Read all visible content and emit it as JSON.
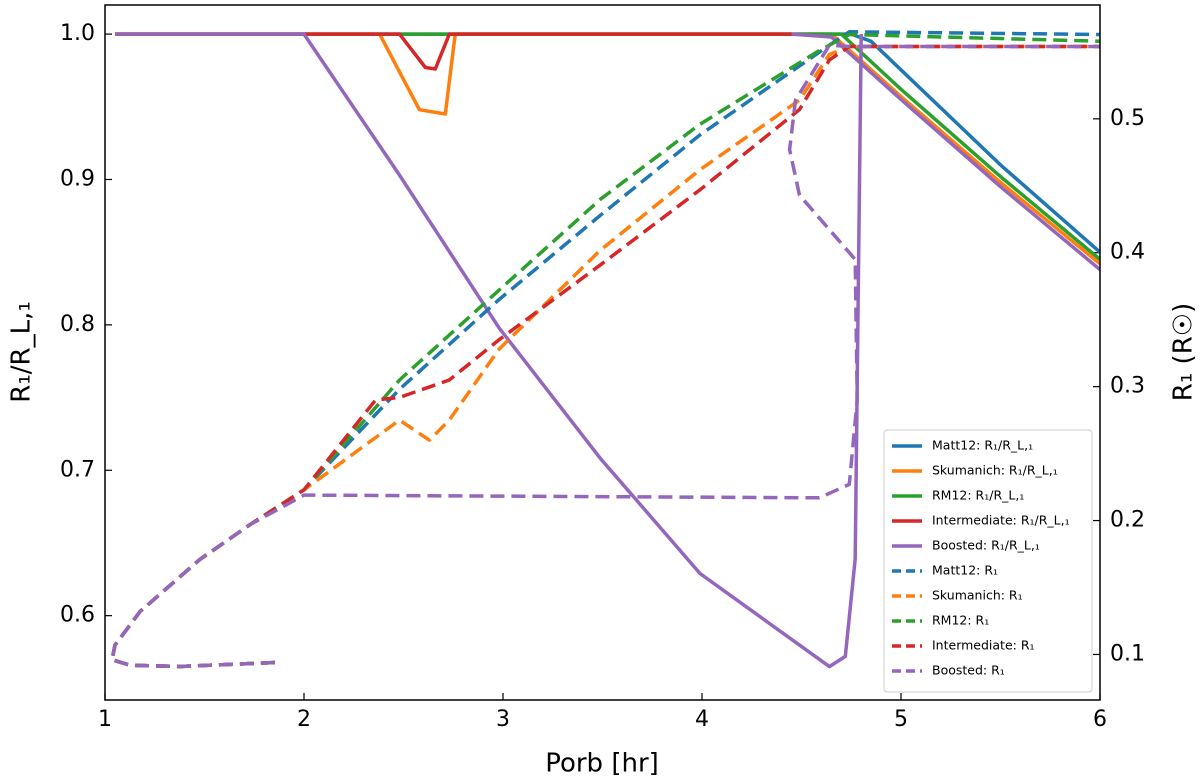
{
  "chart_data": {
    "type": "line",
    "xlabel": "Porb [hr]",
    "ylabel": "R₁/R_L,₁",
    "y2label": "R₁ (R☉)",
    "xlim": [
      1,
      6
    ],
    "xticks": [
      1,
      2,
      3,
      4,
      5,
      6
    ],
    "ylim": [
      0.542,
      1.02
    ],
    "yticks": [
      0.6,
      0.7,
      0.8,
      0.9,
      {
        "value": 1,
        "label": "1.0"
      }
    ],
    "y2lim": [
      0.066,
      0.585
    ],
    "y2ticks": [
      0.1,
      0.2,
      0.3,
      0.4,
      0.5
    ],
    "legend": "lower right",
    "series": [
      {
        "name": "Matt12: R₁/R_L,₁",
        "color": "#1f77b4",
        "dash": false,
        "x": [
          1.05,
          4.75,
          4.85,
          5.5,
          6
        ],
        "values": [
          1.0,
          1.0,
          0.995,
          0.91,
          0.85
        ]
      },
      {
        "name": "Skumanich: R₁/R_L,₁",
        "color": "#ff7f0e",
        "dash": false,
        "x": [
          1.05,
          2.38,
          2.58,
          2.71,
          2.76,
          4.65,
          5.0,
          5.5,
          6
        ],
        "values": [
          1.0,
          1.0,
          0.948,
          0.945,
          1.0,
          1.0,
          0.957,
          0.898,
          0.842
        ]
      },
      {
        "name": "RM12: R₁/R_L,₁",
        "color": "#2ca02c",
        "dash": false,
        "x": [
          1.05,
          4.7,
          5.0,
          5.5,
          6
        ],
        "values": [
          1.0,
          1.0,
          0.962,
          0.902,
          0.845
        ]
      },
      {
        "name": "Intermediate: R₁/R_L,₁",
        "color": "#d62728",
        "dash": false,
        "x": [
          1.05,
          2.48,
          2.61,
          2.66,
          2.73,
          4.45
        ],
        "values": [
          1.0,
          1.0,
          0.977,
          0.976,
          1.0,
          1.0
        ]
      },
      {
        "name": "Boosted: R₁/R_L,₁",
        "color": "#9467bd",
        "dash": false,
        "x": [
          1.05,
          2.0,
          2.48,
          2.98,
          3.49,
          3.99,
          4.64,
          4.72,
          4.77,
          4.8,
          null,
          4.45,
          4.65,
          5.0,
          5.5,
          6
        ],
        "values": [
          1.0,
          1.0,
          0.903,
          0.798,
          0.708,
          0.629,
          0.565,
          0.572,
          0.639,
          1.0,
          null,
          1.0,
          0.998,
          0.955,
          0.895,
          0.838
        ]
      },
      {
        "name": "Matt12: R₁",
        "color": "#1f77b4",
        "dash": true,
        "axis": "y2",
        "x": [
          1.854,
          1.377,
          1.126,
          1.035,
          1.05,
          1.176,
          1.477,
          1.729,
          2.0,
          2.48,
          2.98,
          3.49,
          3.99,
          4.64,
          4.74,
          6
        ],
        "values": [
          0.094,
          0.091,
          0.092,
          0.096,
          0.107,
          0.132,
          0.171,
          0.197,
          0.223,
          0.298,
          0.365,
          0.428,
          0.488,
          0.555,
          0.565,
          0.563
        ]
      },
      {
        "name": "Skumanich: R₁",
        "color": "#ff7f0e",
        "dash": true,
        "axis": "y2",
        "x": [
          1.854,
          1.377,
          1.126,
          1.035,
          1.05,
          1.176,
          1.477,
          1.729,
          2.0,
          2.48,
          2.63,
          2.73,
          2.98,
          3.49,
          3.99,
          4.49,
          4.64,
          4.74,
          6
        ],
        "values": [
          0.094,
          0.091,
          0.092,
          0.096,
          0.107,
          0.132,
          0.171,
          0.197,
          0.223,
          0.275,
          0.26,
          0.275,
          0.328,
          0.402,
          0.462,
          0.514,
          0.548,
          0.554,
          0.554
        ]
      },
      {
        "name": "RM12: R₁",
        "color": "#2ca02c",
        "dash": true,
        "axis": "y2",
        "x": [
          1.854,
          1.377,
          1.126,
          1.035,
          1.05,
          1.176,
          1.477,
          1.729,
          2.0,
          2.48,
          2.98,
          3.49,
          3.99,
          4.59,
          4.74,
          6
        ],
        "values": [
          0.094,
          0.091,
          0.092,
          0.096,
          0.107,
          0.132,
          0.171,
          0.197,
          0.223,
          0.305,
          0.372,
          0.44,
          0.496,
          0.551,
          0.563,
          0.558
        ]
      },
      {
        "name": "Intermediate: R₁",
        "color": "#d62728",
        "dash": true,
        "axis": "y2",
        "x": [
          1.854,
          1.377,
          1.126,
          1.035,
          1.05,
          1.176,
          1.477,
          1.729,
          2.0,
          2.36,
          2.48,
          2.73,
          2.98,
          3.49,
          3.99,
          4.49,
          4.64,
          4.74,
          6
        ],
        "values": [
          0.094,
          0.091,
          0.092,
          0.096,
          0.107,
          0.132,
          0.171,
          0.197,
          0.223,
          0.29,
          0.292,
          0.305,
          0.335,
          0.391,
          0.447,
          0.507,
          0.544,
          0.554,
          0.554
        ]
      },
      {
        "name": "Boosted: R₁",
        "color": "#9467bd",
        "dash": true,
        "axis": "y2",
        "x": [
          1.854,
          1.377,
          1.126,
          1.035,
          1.05,
          1.176,
          1.477,
          1.729,
          2.0,
          4.59,
          4.74,
          4.78,
          4.77,
          4.49,
          4.44,
          4.47,
          4.64,
          4.74,
          6
        ],
        "values": [
          0.094,
          0.091,
          0.092,
          0.096,
          0.107,
          0.132,
          0.171,
          0.197,
          0.219,
          0.217,
          0.227,
          0.29,
          0.395,
          0.443,
          0.477,
          0.514,
          0.555,
          0.554,
          0.554
        ]
      }
    ]
  }
}
